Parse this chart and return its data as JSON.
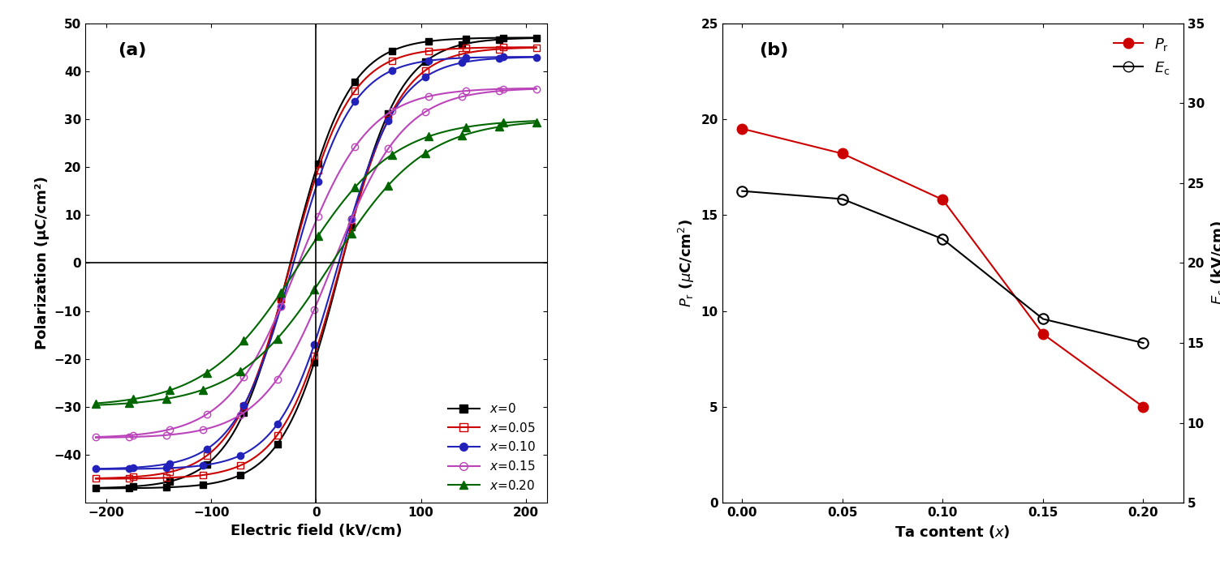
{
  "panel_a": {
    "title": "(a)",
    "xlabel": "Electric field (kV/cm)",
    "ylabel": "Polarization (μC/cm²)",
    "xlim": [
      -220,
      220
    ],
    "ylim": [
      -50,
      50
    ],
    "xticks": [
      -200,
      -100,
      0,
      100,
      200
    ],
    "yticks": [
      -40,
      -30,
      -20,
      -10,
      0,
      10,
      20,
      30,
      40,
      50
    ],
    "curves": [
      {
        "label": "$x$=0",
        "color": "black",
        "marker": "s",
        "filled": true,
        "Pr": 19.5,
        "Ec": 24.5,
        "Psat": 47.0,
        "n": 3.5
      },
      {
        "label": "$x$=0.05",
        "color": "#cc0000",
        "marker": "s",
        "filled": false,
        "Pr": 18.2,
        "Ec": 24.0,
        "Psat": 45.0,
        "n": 3.5
      },
      {
        "label": "$x$=0.10",
        "color": "#2222bb",
        "marker": "o",
        "filled": true,
        "Pr": 15.8,
        "Ec": 21.5,
        "Psat": 43.0,
        "n": 3.2
      },
      {
        "label": "$x$=0.15",
        "color": "#bb44bb",
        "marker": "o",
        "filled": false,
        "Pr": 8.8,
        "Ec": 16.5,
        "Psat": 36.5,
        "n": 2.8
      },
      {
        "label": "$x$=0.20",
        "color": "#006600",
        "marker": "^",
        "filled": true,
        "Pr": 5.0,
        "Ec": 15.0,
        "Psat": 30.0,
        "n": 2.5
      }
    ]
  },
  "panel_b": {
    "title": "(b)",
    "xlabel": "Ta content ($x$)",
    "xlim": [
      -0.01,
      0.22
    ],
    "ylim_left": [
      0,
      25
    ],
    "ylim_right": [
      5,
      35
    ],
    "xticks": [
      0.0,
      0.05,
      0.1,
      0.15,
      0.2
    ],
    "yticks_left": [
      0,
      5,
      10,
      15,
      20,
      25
    ],
    "yticks_right": [
      5,
      10,
      15,
      20,
      25,
      30,
      35
    ],
    "Pr_data": {
      "x": [
        0.0,
        0.05,
        0.1,
        0.15,
        0.2
      ],
      "y": [
        19.5,
        18.2,
        15.8,
        8.8,
        5.0
      ],
      "color": "#cc0000",
      "marker": "o"
    },
    "Ec_data": {
      "x": [
        0.0,
        0.05,
        0.1,
        0.15,
        0.2
      ],
      "y": [
        24.5,
        24.0,
        21.5,
        16.5,
        15.0
      ],
      "color": "black",
      "marker": "o"
    }
  }
}
